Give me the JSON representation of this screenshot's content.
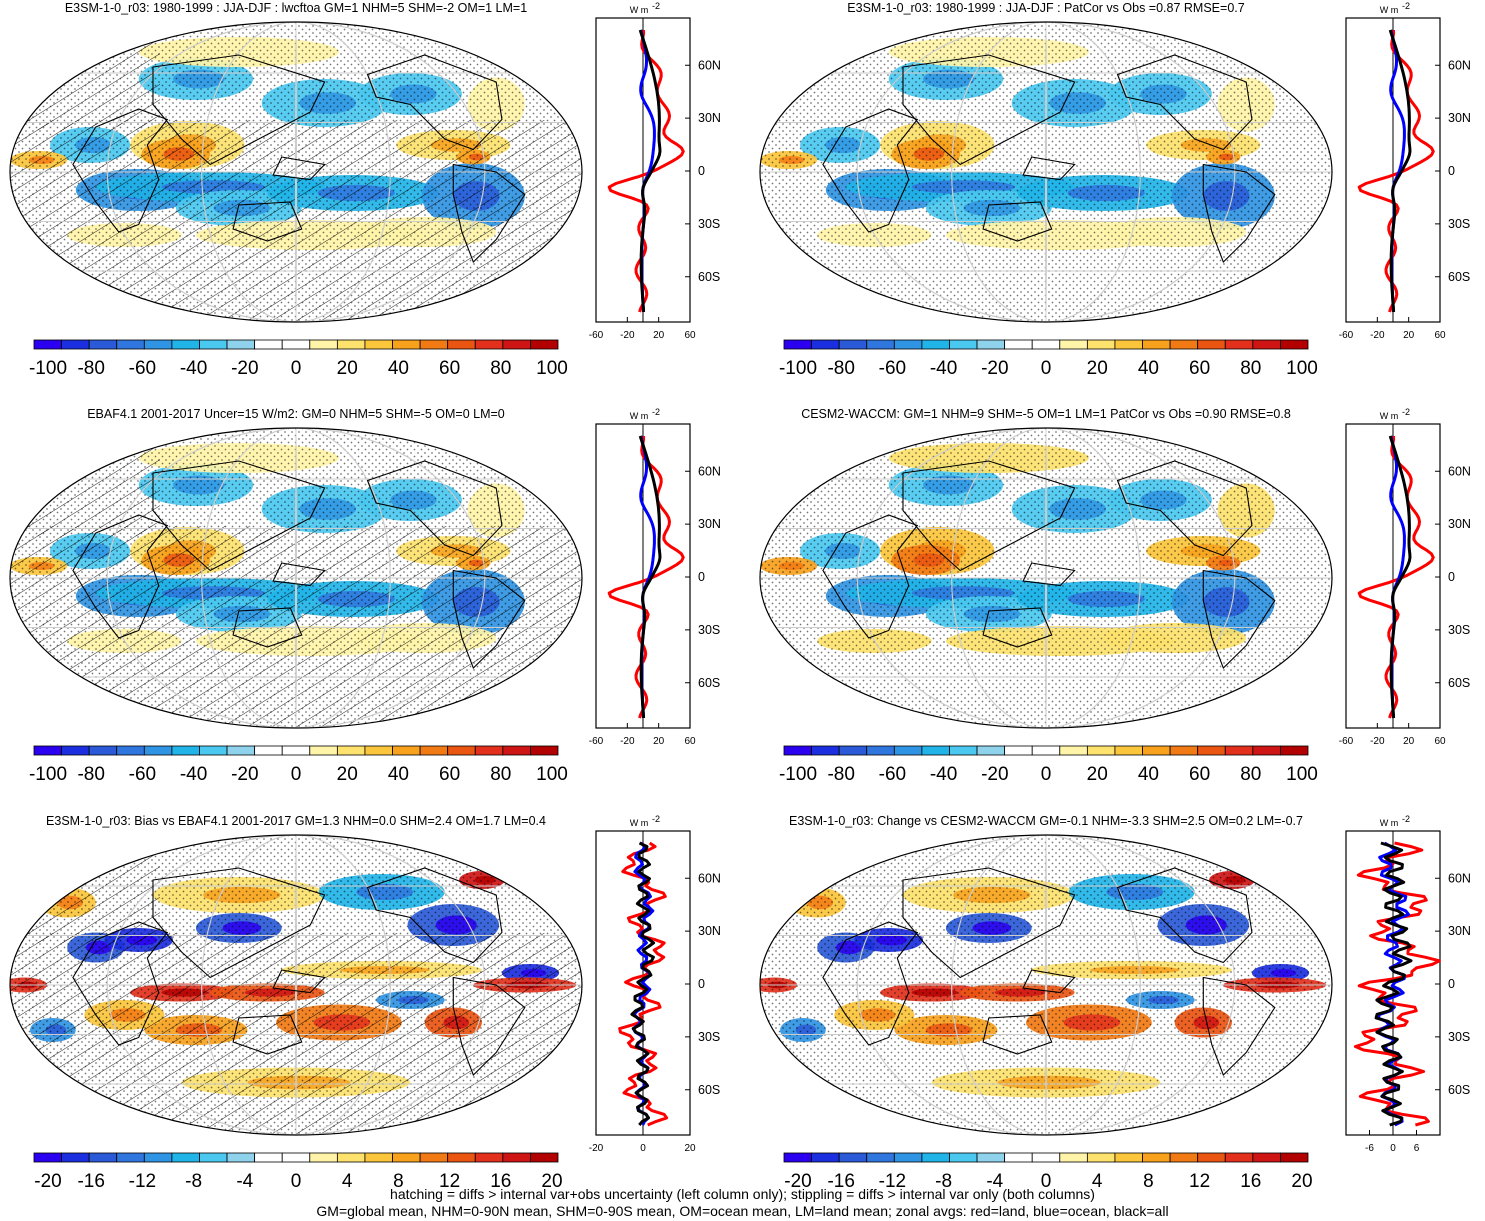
{
  "colors": {
    "scale": [
      "#2b00f0",
      "#1b2fe0",
      "#2a5ad8",
      "#2f76de",
      "#2f94e3",
      "#21b4e8",
      "#4ac8f0",
      "#8ed2ec",
      "#ffffff",
      "#ffffff",
      "#fff4a8",
      "#fde26e",
      "#fbc63b",
      "#f7a11c",
      "#f27a14",
      "#ea5512",
      "#e2301c",
      "#cf1414",
      "#b30000"
    ],
    "land_line": "#ff0000",
    "ocean_line": "#0000ff",
    "all_line": "#000000"
  },
  "panels": [
    {
      "title": "E3SM-1-0_r03: 1980-1999 : JJA-DJF : lwcftoa GM=1 NHM=5 SHM=-2 OM=1 LM=1",
      "colorbar_ticks": [
        "-100",
        "-80",
        "-60",
        "-40",
        "-20",
        "0",
        "20",
        "40",
        "60",
        "80",
        "100"
      ],
      "zonal_unit": "W m",
      "zonal_unit_exp": "-2",
      "zonal_xticks": [
        "-60",
        "-20",
        "20",
        "60"
      ],
      "zonal_xlim": [
        -60,
        60
      ],
      "zonal_ticks_override": null,
      "lat_labels": [
        "60N",
        "30N",
        "0",
        "30S",
        "60S"
      ],
      "hatched": true,
      "style": "smooth"
    },
    {
      "title": "E3SM-1-0_r03: 1980-1999 : JJA-DJF : PatCor vs Obs =0.87 RMSE=0.7",
      "colorbar_ticks": [
        "-100",
        "-80",
        "-60",
        "-40",
        "-20",
        "0",
        "20",
        "40",
        "60",
        "80",
        "100"
      ],
      "zonal_unit": "W m",
      "zonal_unit_exp": "-2",
      "zonal_xticks": [
        "-60",
        "-20",
        "20",
        "60"
      ],
      "zonal_xlim": [
        -60,
        60
      ],
      "lat_labels": [
        "60N",
        "30N",
        "0",
        "30S",
        "60S"
      ],
      "hatched": false,
      "style": "smooth"
    },
    {
      "title": "EBAF4.1 2001-2017 Uncer=15 W/m2: GM=0 NHM=5 SHM=-5 OM=0 LM=0",
      "colorbar_ticks": [
        "-100",
        "-80",
        "-60",
        "-40",
        "-20",
        "0",
        "20",
        "40",
        "60",
        "80",
        "100"
      ],
      "zonal_unit": "W m",
      "zonal_unit_exp": "-2",
      "zonal_xticks": [
        "-60",
        "-20",
        "20",
        "60"
      ],
      "zonal_xlim": [
        -60,
        60
      ],
      "lat_labels": [
        "60N",
        "30N",
        "0",
        "30S",
        "60S"
      ],
      "hatched": true,
      "style": "smooth"
    },
    {
      "title": "CESM2-WACCM: GM=1 NHM=9 SHM=-5 OM=1 LM=1 PatCor vs Obs =0.90 RMSE=0.8",
      "colorbar_ticks": [
        "-100",
        "-80",
        "-60",
        "-40",
        "-20",
        "0",
        "20",
        "40",
        "60",
        "80",
        "100"
      ],
      "zonal_unit": "W m",
      "zonal_unit_exp": "-2",
      "zonal_xticks": [
        "-60",
        "-20",
        "20",
        "60"
      ],
      "zonal_xlim": [
        -60,
        60
      ],
      "lat_labels": [
        "60N",
        "30N",
        "0",
        "30S",
        "60S"
      ],
      "hatched": false,
      "style": "smooth"
    },
    {
      "title": "E3SM-1-0_r03: Bias vs EBAF4.1 2001-2017 GM=1.3 NHM=0.0 SHM=2.4 OM=1.7 LM=0.4",
      "colorbar_ticks": [
        "-20",
        "-16",
        "-12",
        "-8",
        "-4",
        "0",
        "4",
        "8",
        "12",
        "16",
        "20"
      ],
      "zonal_unit": "W m",
      "zonal_unit_exp": "-2",
      "zonal_xticks": [
        "-20",
        "0",
        "20"
      ],
      "zonal_xlim": [
        -20,
        20
      ],
      "lat_labels": [
        "60N",
        "30N",
        "0",
        "30S",
        "60S"
      ],
      "hatched": true,
      "style": "noisy"
    },
    {
      "title": "E3SM-1-0_r03: Change vs CESM2-WACCM GM=-0.1 NHM=-3.3 SHM=2.5 OM=0.2 LM=-0.7",
      "colorbar_ticks": [
        "-20",
        "-16",
        "-12",
        "-8",
        "-4",
        "0",
        "4",
        "8",
        "12",
        "16",
        "20"
      ],
      "zonal_unit": "W m",
      "zonal_unit_exp": "-2",
      "zonal_xticks": [
        "-6",
        "0",
        "6"
      ],
      "zonal_xlim": [
        -12,
        12
      ],
      "lat_labels": [
        "60N",
        "30N",
        "0",
        "30S",
        "60S"
      ],
      "hatched": false,
      "style": "noisy"
    }
  ],
  "footer": [
    "hatching = diffs > internal var+obs uncertainty (left column only); stippling = diffs > internal var only (both columns)",
    "GM=global mean, NHM=0-90N mean, SHM=0-90S mean, OM=ocean mean, LM=land mean; zonal avgs: red=land, blue=ocean, black=all"
  ]
}
